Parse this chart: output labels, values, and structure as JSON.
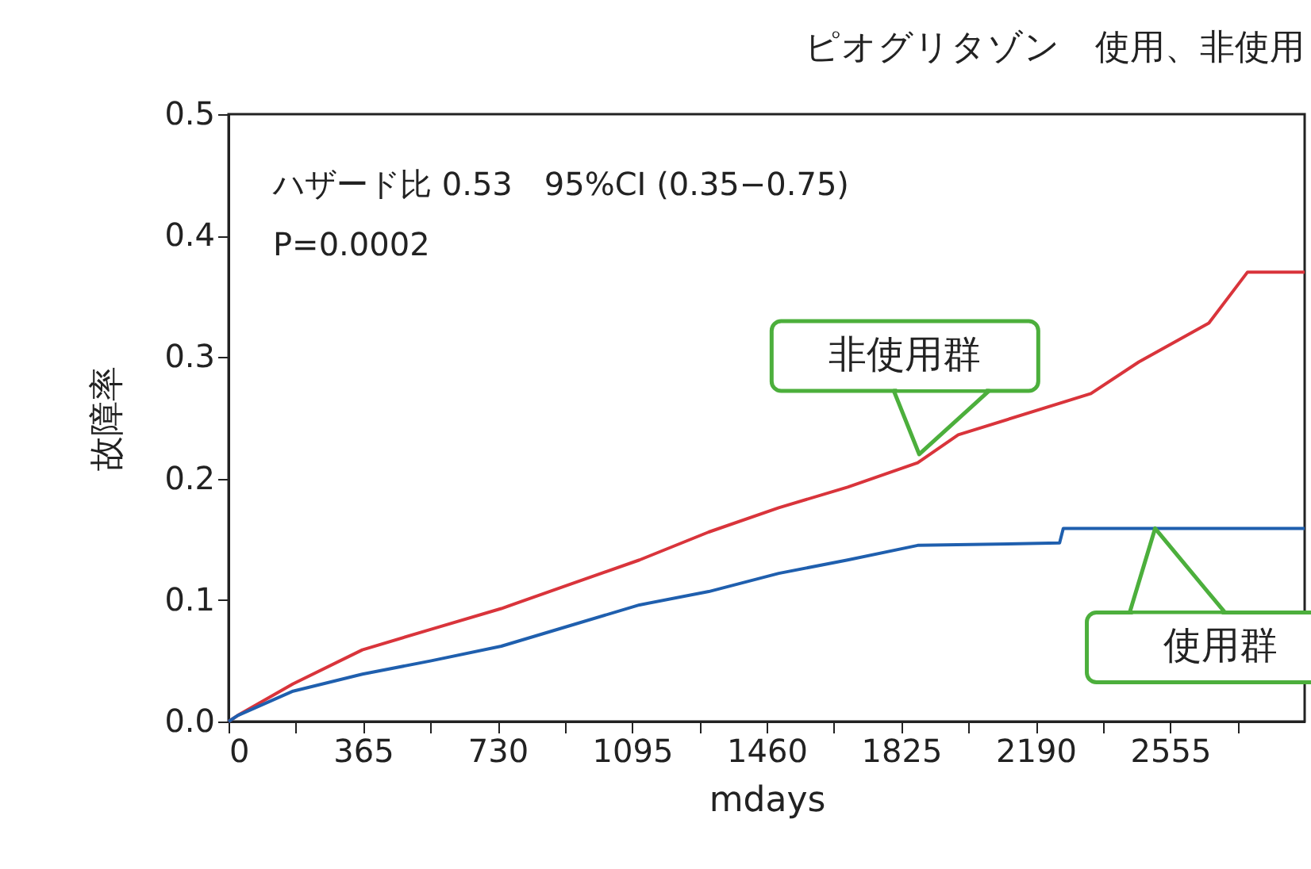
{
  "chart_data": {
    "type": "line",
    "title": "ピオグリタゾン　使用、非使用",
    "xlabel": "mdays",
    "ylabel": "故障率",
    "xlim": [
      0,
      2920
    ],
    "ylim": [
      0,
      0.5
    ],
    "xticks": [
      0,
      {
        "value": 182.5,
        "label": null
      },
      365,
      {
        "value": 547.5,
        "label": null
      },
      730,
      {
        "value": 912.5,
        "label": null
      },
      1095,
      {
        "value": 1277.5,
        "label": null
      },
      1460,
      {
        "value": 1642.5,
        "label": null
      },
      1825,
      {
        "value": 2007.5,
        "label": null
      },
      2190,
      {
        "value": 2372.5,
        "label": null
      },
      2555,
      {
        "value": 2737.5,
        "label": null
      }
    ],
    "yticks": [
      {
        "value": 0,
        "label": "0.0"
      },
      {
        "value": 0.1,
        "label": "0.1"
      },
      {
        "value": 0.2,
        "label": "0.2"
      },
      {
        "value": 0.3,
        "label": "0.3"
      },
      {
        "value": 0.4,
        "label": "0.4"
      },
      {
        "value": 0.5,
        "label": "0.5"
      }
    ],
    "legend": false,
    "series": [
      {
        "color": "#d9343b",
        "x": [
          0,
          25,
          175,
          363,
          550,
          740,
          927,
          1115,
          1303,
          1493,
          1680,
          1870,
          1980,
          2340,
          2470,
          2660,
          2765,
          2920
        ],
        "values": [
          0,
          0.005,
          0.031,
          0.059,
          0.076,
          0.093,
          0.113,
          0.133,
          0.156,
          0.176,
          0.193,
          0.213,
          0.236,
          0.27,
          0.296,
          0.328,
          0.37,
          0.37
        ]
      },
      {
        "color": "#1f5fae",
        "x": [
          0,
          25,
          175,
          363,
          550,
          740,
          927,
          1115,
          1303,
          1493,
          1680,
          1870,
          2255,
          2265,
          2920
        ],
        "values": [
          0,
          0.005,
          0.025,
          0.039,
          0.05,
          0.062,
          0.079,
          0.096,
          0.107,
          0.122,
          0.133,
          0.145,
          0.147,
          0.159,
          0.159
        ]
      }
    ],
    "annotations": [
      "ハザード比 0.53　95%CI (0.35−0.75)",
      "P=0.0002",
      {
        "text": "非使用群",
        "x": 1900,
        "y": 0.22
      },
      {
        "text": "使用群",
        "x": 2540,
        "y": 0.159
      }
    ]
  }
}
